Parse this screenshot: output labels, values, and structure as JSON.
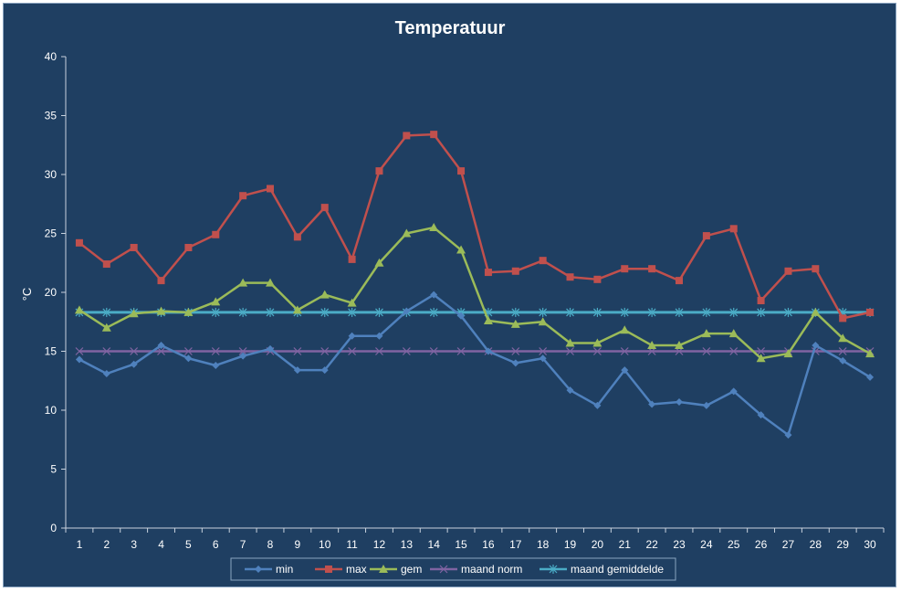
{
  "chart_data": {
    "type": "line",
    "title": "Temperatuur",
    "xlabel": "",
    "ylabel": "°C",
    "ylim": [
      0,
      40
    ],
    "yticks": [
      0,
      5,
      10,
      15,
      20,
      25,
      30,
      35,
      40
    ],
    "grid": false,
    "legend_position": "bottom",
    "categories": [
      "1",
      "2",
      "3",
      "4",
      "5",
      "6",
      "7",
      "8",
      "9",
      "10",
      "11",
      "12",
      "13",
      "14",
      "15",
      "16",
      "17",
      "18",
      "19",
      "20",
      "21",
      "22",
      "23",
      "24",
      "25",
      "26",
      "27",
      "28",
      "29",
      "30"
    ],
    "series": [
      {
        "name": "min",
        "color": "#4f81bd",
        "marker": "diamond",
        "values": [
          14.3,
          13.1,
          13.9,
          15.5,
          14.4,
          13.8,
          14.6,
          15.2,
          13.4,
          13.4,
          16.3,
          16.3,
          18.4,
          19.8,
          18.0,
          15.0,
          14.0,
          14.4,
          11.7,
          10.4,
          13.4,
          10.5,
          10.7,
          10.4,
          11.6,
          9.6,
          7.9,
          15.5,
          14.2,
          12.8
        ]
      },
      {
        "name": "max",
        "color": "#c0504d",
        "marker": "square",
        "values": [
          24.2,
          22.4,
          23.8,
          21.0,
          23.8,
          24.9,
          28.2,
          28.8,
          24.7,
          27.2,
          22.8,
          30.3,
          33.3,
          33.4,
          30.3,
          21.7,
          21.8,
          22.7,
          21.3,
          21.1,
          22.0,
          22.0,
          21.0,
          24.8,
          25.4,
          19.3,
          21.8,
          22.0,
          17.8,
          18.3
        ]
      },
      {
        "name": "gem",
        "color": "#9bbb59",
        "marker": "triangle",
        "values": [
          18.5,
          17.0,
          18.2,
          18.4,
          18.3,
          19.2,
          20.8,
          20.8,
          18.5,
          19.8,
          19.1,
          22.5,
          25.0,
          25.5,
          23.6,
          17.6,
          17.3,
          17.5,
          15.7,
          15.7,
          16.8,
          15.5,
          15.5,
          16.5,
          16.5,
          14.4,
          14.8,
          18.3,
          16.1,
          14.8
        ]
      },
      {
        "name": "maand norm",
        "color": "#8064a2",
        "marker": "x",
        "values": [
          15.0,
          15.0,
          15.0,
          15.0,
          15.0,
          15.0,
          15.0,
          15.0,
          15.0,
          15.0,
          15.0,
          15.0,
          15.0,
          15.0,
          15.0,
          15.0,
          15.0,
          15.0,
          15.0,
          15.0,
          15.0,
          15.0,
          15.0,
          15.0,
          15.0,
          15.0,
          15.0,
          15.0,
          15.0,
          15.0
        ]
      },
      {
        "name": "maand gemiddelde",
        "color": "#4bacc6",
        "marker": "star",
        "values": [
          18.3,
          18.3,
          18.3,
          18.3,
          18.3,
          18.3,
          18.3,
          18.3,
          18.3,
          18.3,
          18.3,
          18.3,
          18.3,
          18.3,
          18.3,
          18.3,
          18.3,
          18.3,
          18.3,
          18.3,
          18.3,
          18.3,
          18.3,
          18.3,
          18.3,
          18.3,
          18.3,
          18.3,
          18.3,
          18.3
        ]
      }
    ]
  }
}
